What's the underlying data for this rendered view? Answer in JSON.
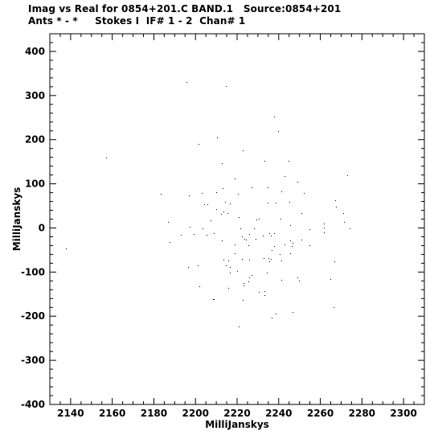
{
  "header": {
    "line1": "Imag vs Real for 0854+201.C BAND.1   Source:0854+201",
    "line2": "Ants * - *     Stokes I  IF# 1 - 2  Chan# 1"
  },
  "chart_data": {
    "type": "scatter",
    "title": "Imag vs Real for 0854+201.C BAND.1   Source:0854+201",
    "subtitle": "Ants * - *     Stokes I  IF# 1 - 2  Chan# 1",
    "xlabel": "MilliJanskys",
    "ylabel": "MilliJanskys",
    "xlim": [
      2130,
      2310
    ],
    "ylim": [
      -400,
      440
    ],
    "xticks": [
      2140,
      2160,
      2180,
      2200,
      2220,
      2240,
      2260,
      2280,
      2300
    ],
    "yticks": [
      -400,
      -300,
      -200,
      -100,
      0,
      100,
      200,
      300,
      400
    ],
    "grid": false,
    "marker_color": "#000000",
    "distribution": {
      "description_units": "data units",
      "x_center": 2225,
      "y_center": 0,
      "x_spread_sd": 22,
      "y_spread_sd": 95,
      "approx_point_count": 9000
    }
  }
}
